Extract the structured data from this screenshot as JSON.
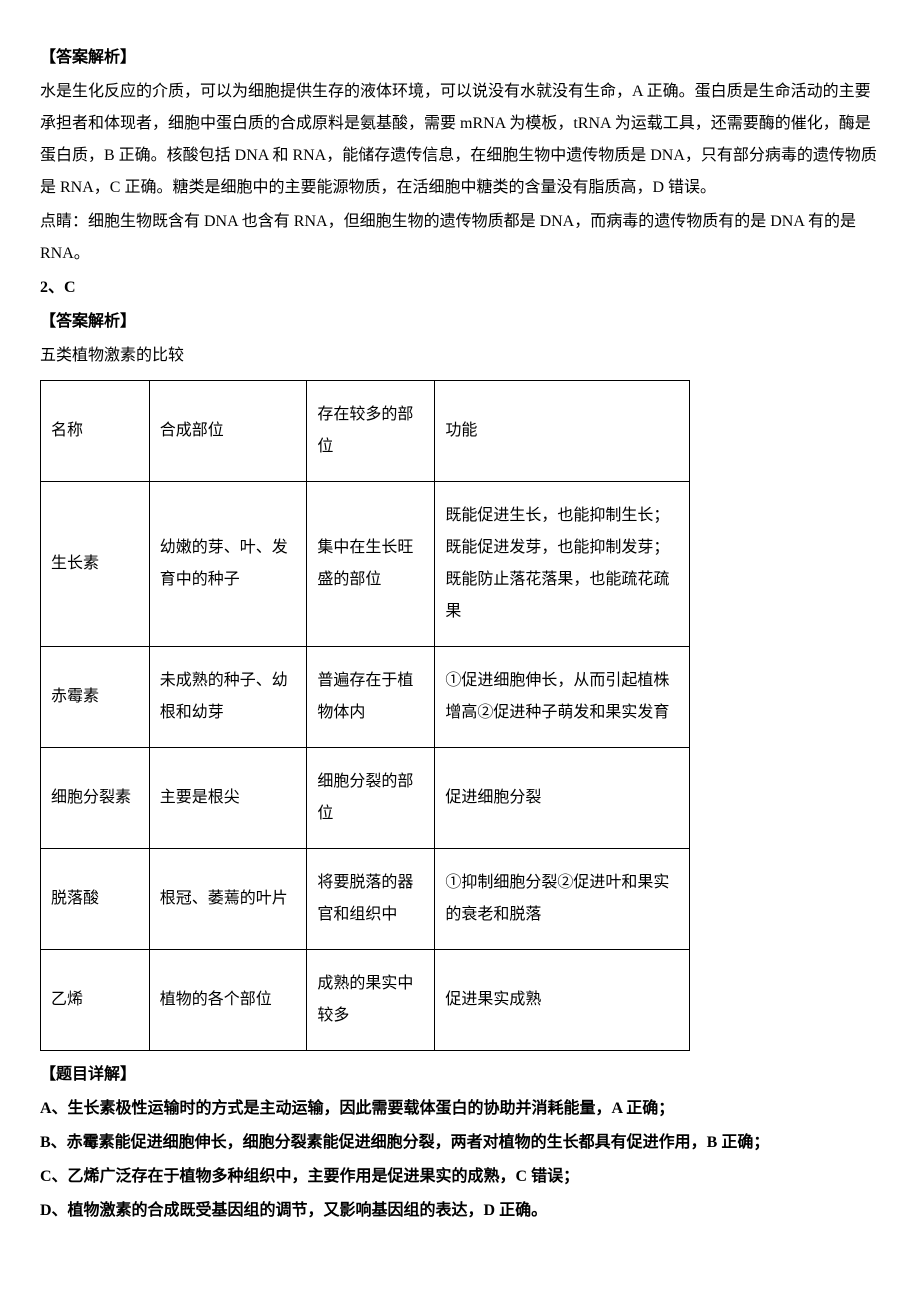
{
  "q1": {
    "heading": "【答案解析】",
    "body": "水是生化反应的介质，可以为细胞提供生存的液体环境，可以说没有水就没有生命，A 正确。蛋白质是生命活动的主要承担者和体现者，细胞中蛋白质的合成原料是氨基酸，需要 mRNA 为模板，tRNA 为运载工具，还需要酶的催化，酶是蛋白质，B 正确。核酸包括 DNA 和 RNA，能储存遗传信息，在细胞生物中遗传物质是 DNA，只有部分病毒的遗传物质是 RNA，C 正确。糖类是细胞中的主要能源物质，在活细胞中糖类的含量没有脂质高，D 错误。",
    "note": "点睛：细胞生物既含有 DNA 也含有 RNA，但细胞生物的遗传物质都是 DNA，而病毒的遗传物质有的是 DNA 有的是 RNA。"
  },
  "q2": {
    "number": "2、C",
    "heading": "【答案解析】",
    "intro": "五类植物激素的比较",
    "table_header": {
      "c0": "名称",
      "c1": "合成部位",
      "c2": "存在较多的部位",
      "c3": "功能"
    },
    "table_rows": [
      {
        "c0": "生长素",
        "c1": "幼嫩的芽、叶、发育中的种子",
        "c2": "集中在生长旺盛的部位",
        "c3": "既能促进生长，也能抑制生长；既能促进发芽，也能抑制发芽；既能防止落花落果，也能疏花疏果"
      },
      {
        "c0": "赤霉素",
        "c1": "未成熟的种子、幼根和幼芽",
        "c2": "普遍存在于植物体内",
        "c3": "①促进细胞伸长，从而引起植株增高②促进种子萌发和果实发育"
      },
      {
        "c0": "细胞分裂素",
        "c1": "主要是根尖",
        "c2": "细胞分裂的部位",
        "c3": "促进细胞分裂"
      },
      {
        "c0": "脱落酸",
        "c1": "根冠、萎蔫的叶片",
        "c2": "将要脱落的器官和组织中",
        "c3": "①抑制细胞分裂②促进叶和果实的衰老和脱落"
      },
      {
        "c0": "乙烯",
        "c1": "植物的各个部位",
        "c2": "成熟的果实中较多",
        "c3": "促进果实成熟"
      }
    ],
    "detail_heading": "【题目详解】",
    "options": [
      "A、生长素极性运输时的方式是主动运输，因此需要载体蛋白的协助并消耗能量，A 正确；",
      "B、赤霉素能促进细胞伸长，细胞分裂素能促进细胞分裂，两者对植物的生长都具有促进作用，B 正确；",
      "C、乙烯广泛存在于植物多种组织中，主要作用是促进果实的成熟，C 错误；",
      "D、植物激素的合成既受基因组的调节，又影响基因组的表达，D 正确。"
    ]
  }
}
